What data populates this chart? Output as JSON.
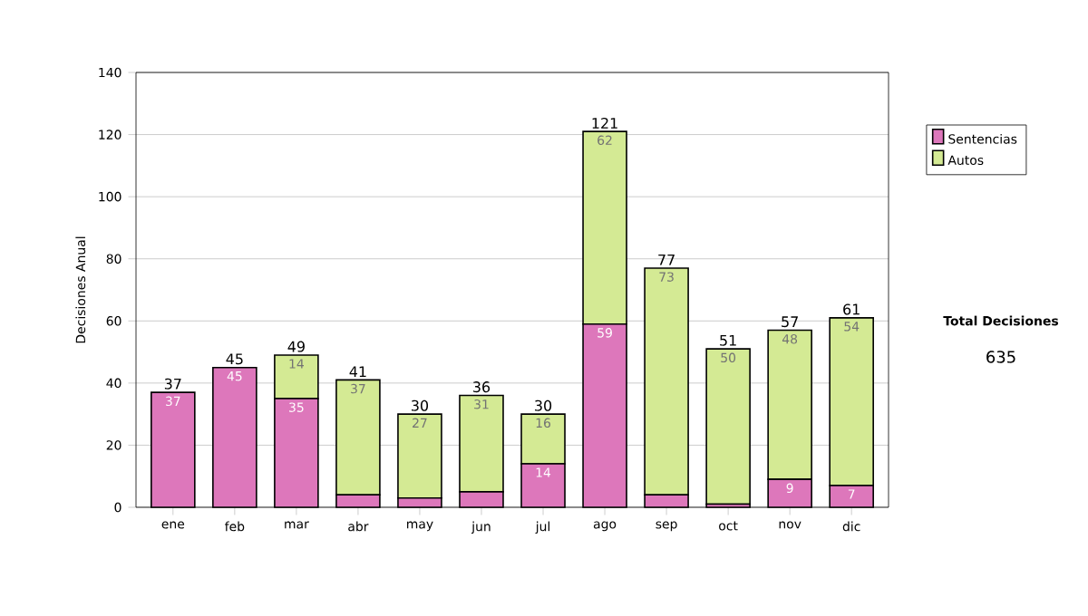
{
  "chart_data": {
    "type": "bar",
    "stacked": true,
    "ylabel": "Decisiones Anual",
    "categories": [
      "ene",
      "feb",
      "mar",
      "abr",
      "may",
      "jun",
      "jul",
      "ago",
      "sep",
      "oct",
      "nov",
      "dic"
    ],
    "series": [
      {
        "name": "Sentencias",
        "color": "#dd77bb",
        "values": [
          37,
          45,
          35,
          4,
          3,
          5,
          14,
          59,
          4,
          1,
          9,
          7
        ],
        "value_labels": [
          "37",
          "45",
          "35",
          null,
          null,
          null,
          "14",
          "59",
          null,
          null,
          "9",
          "7"
        ]
      },
      {
        "name": "Autos",
        "color": "#d4ea94",
        "values": [
          0,
          0,
          14,
          37,
          27,
          31,
          16,
          62,
          73,
          50,
          48,
          54
        ],
        "value_labels": [
          null,
          null,
          "14",
          "37",
          "27",
          "31",
          "16",
          "62",
          "73",
          "50",
          "48",
          "54"
        ]
      }
    ],
    "totals": [
      "37",
      "45",
      "49",
      "41",
      "30",
      "36",
      "30",
      "121",
      "77",
      "51",
      "57",
      "61"
    ],
    "ylim": [
      0,
      140
    ],
    "yticks": [
      0,
      20,
      40,
      60,
      80,
      100,
      120,
      140
    ],
    "grid": "y",
    "legend": "right",
    "annotations": [
      "Total Decisiones",
      "635"
    ]
  }
}
